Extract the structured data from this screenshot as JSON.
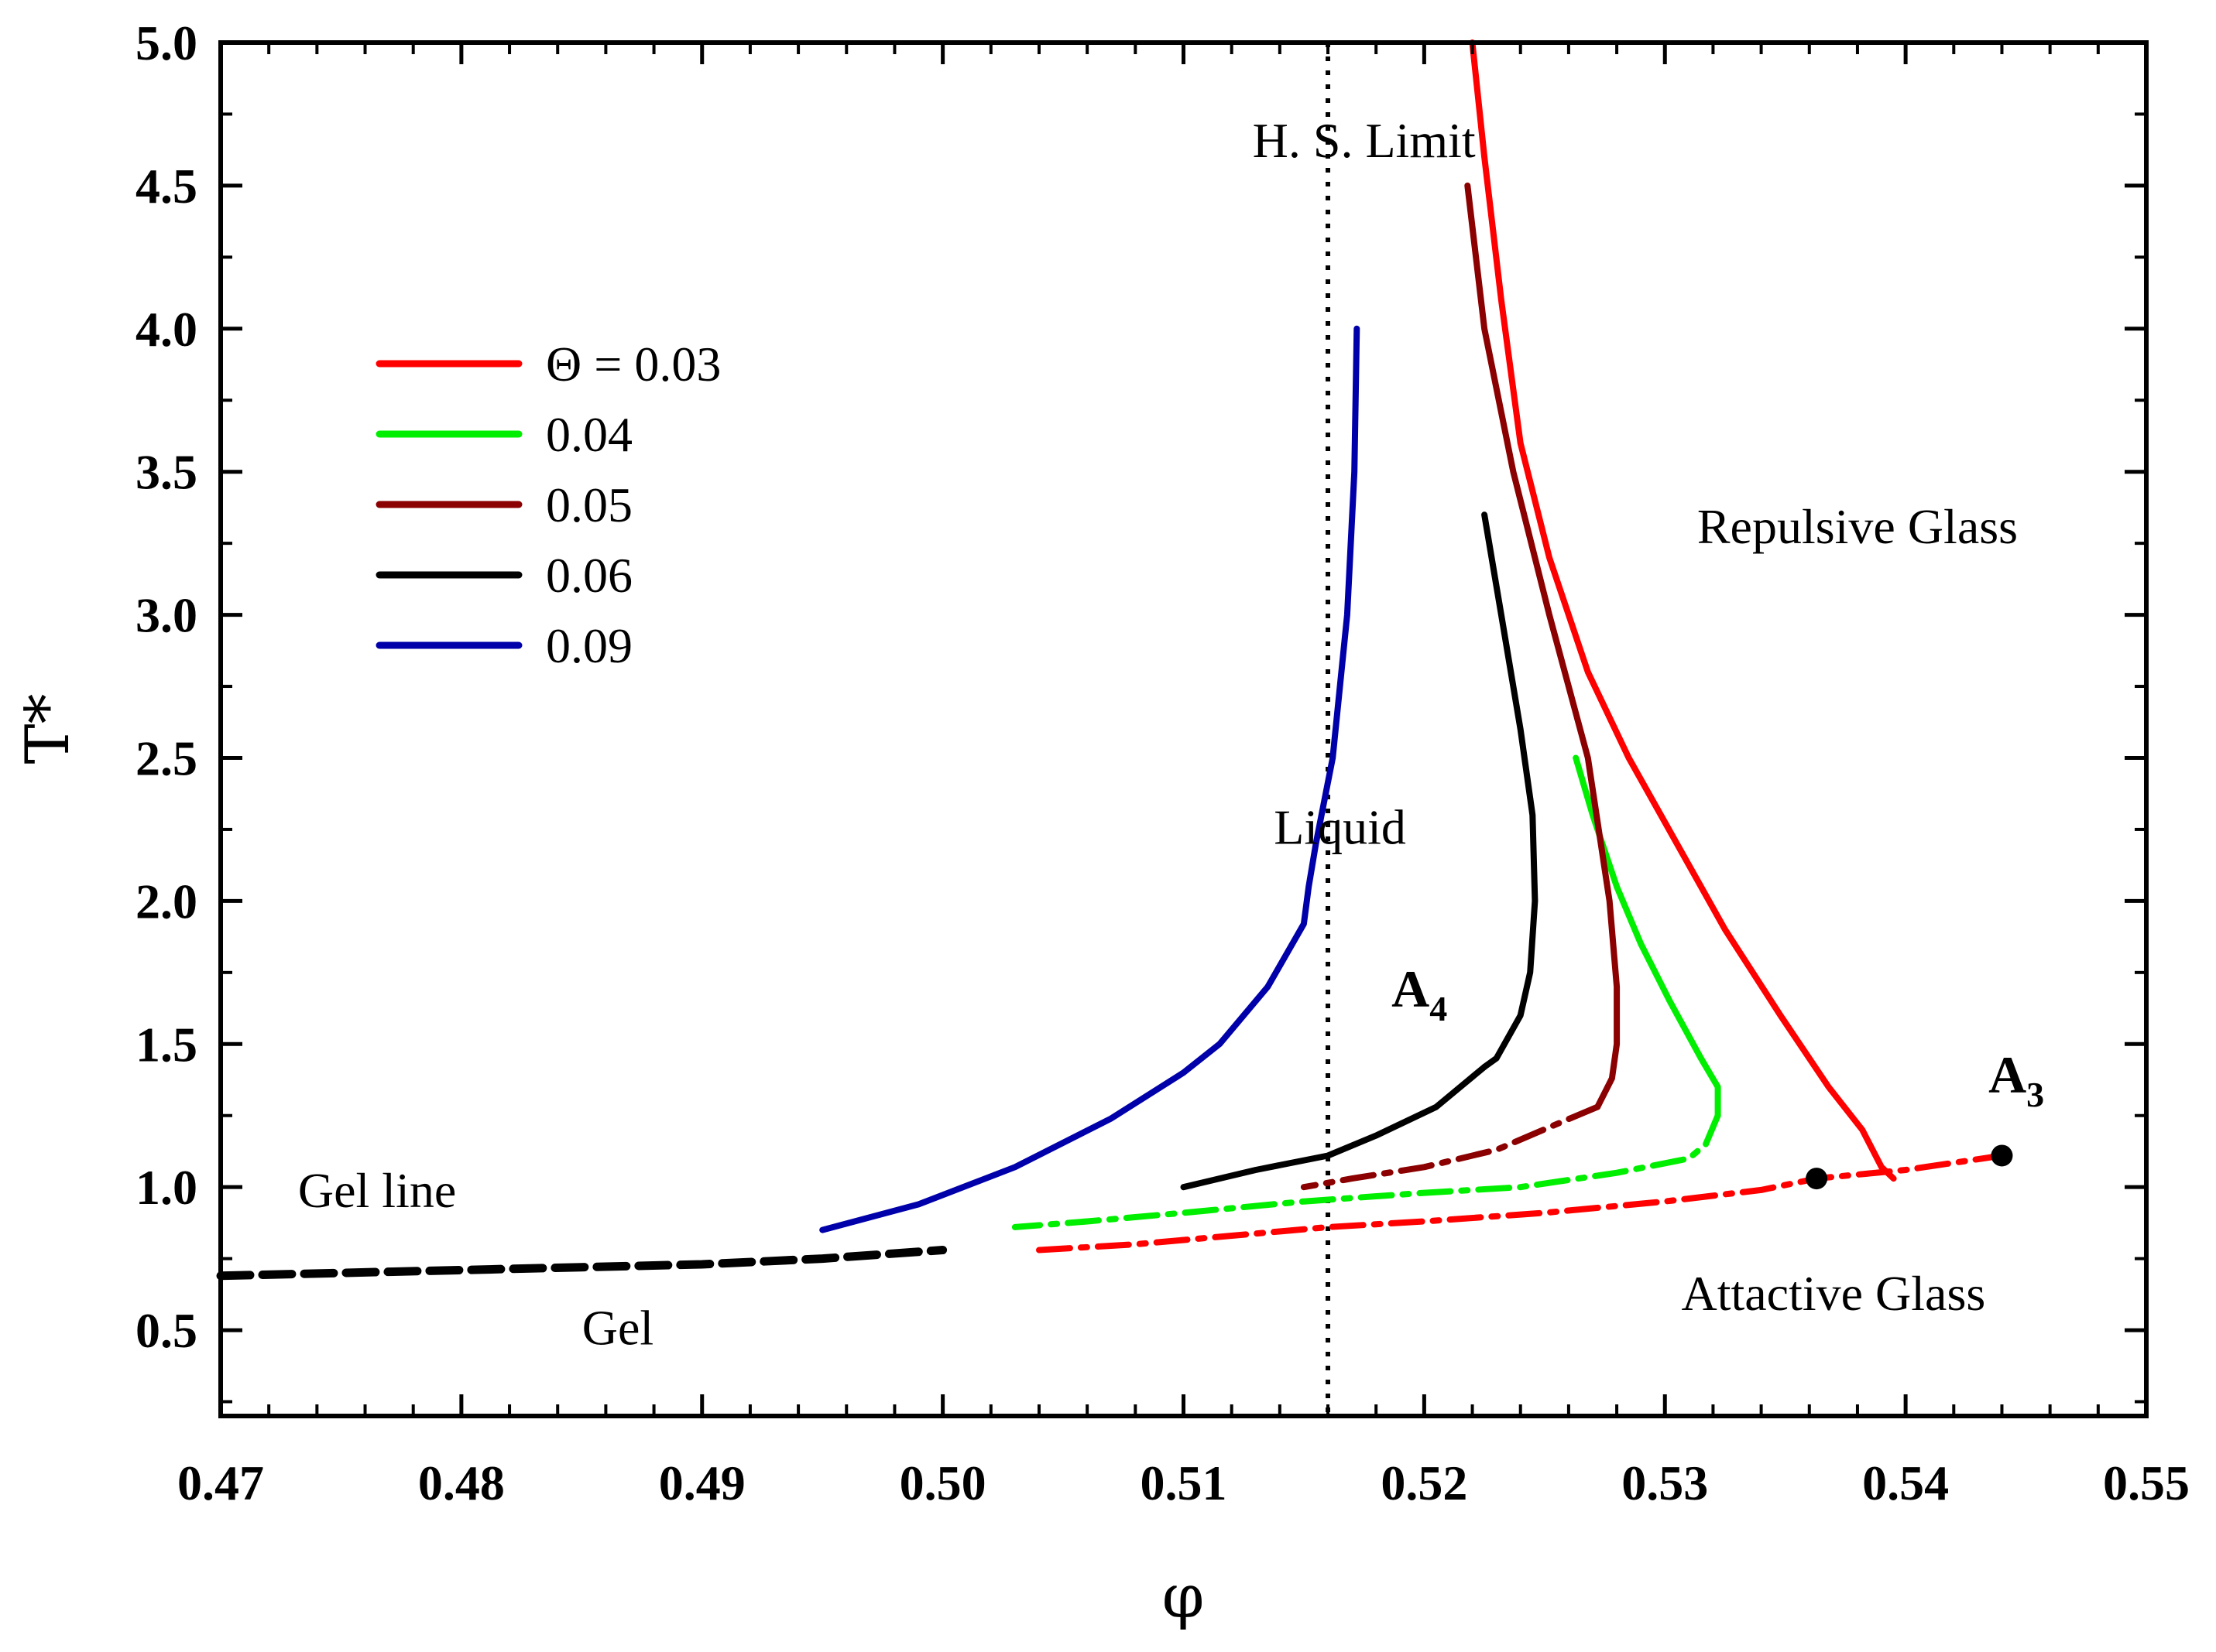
{
  "chart_data": {
    "type": "line",
    "xlabel": "φ",
    "ylabel": "T*",
    "xlim": [
      0.47,
      0.55
    ],
    "ylim": [
      0.2,
      5.0
    ],
    "x_ticks": [
      "0.47",
      "0.48",
      "0.49",
      "0.50",
      "0.51",
      "0.52",
      "0.53",
      "0.54",
      "0.55"
    ],
    "y_ticks": [
      "0.5",
      "1.0",
      "1.5",
      "2.0",
      "2.5",
      "3.0",
      "3.5",
      "4.0",
      "4.5",
      "5.0"
    ],
    "legend": {
      "placement": "upper-left",
      "entries": [
        {
          "label": "Θ = 0.03",
          "color": "#ff0000"
        },
        {
          "label": "0.04",
          "color": "#00ee00"
        },
        {
          "label": "0.05",
          "color": "#8b0000"
        },
        {
          "label": "0.06",
          "color": "#000000"
        },
        {
          "label": "0.09",
          "color": "#0000aa"
        }
      ]
    },
    "series": [
      {
        "name": "Θ = 0.03 repulsive",
        "color": "#ff0000",
        "style": "solid",
        "points": [
          [
            0.522,
            5.0
          ],
          [
            0.5225,
            4.6
          ],
          [
            0.5232,
            4.1
          ],
          [
            0.524,
            3.6
          ],
          [
            0.5252,
            3.2
          ],
          [
            0.5268,
            2.8
          ],
          [
            0.5285,
            2.5
          ],
          [
            0.5305,
            2.2
          ],
          [
            0.5325,
            1.9
          ],
          [
            0.5348,
            1.6
          ],
          [
            0.5368,
            1.35
          ],
          [
            0.5382,
            1.2
          ],
          [
            0.539,
            1.07
          ],
          [
            0.5395,
            1.03
          ]
        ]
      },
      {
        "name": "Θ = 0.03 attractive",
        "color": "#ff0000",
        "style": "dashdot",
        "points": [
          [
            0.504,
            0.78
          ],
          [
            0.508,
            0.8
          ],
          [
            0.512,
            0.83
          ],
          [
            0.516,
            0.86
          ],
          [
            0.52,
            0.88
          ],
          [
            0.525,
            0.91
          ],
          [
            0.53,
            0.95
          ],
          [
            0.534,
            0.99
          ],
          [
            0.5363,
            1.03
          ],
          [
            0.54,
            1.06
          ],
          [
            0.544,
            1.11
          ]
        ]
      },
      {
        "name": "0.04 repulsive",
        "color": "#00ee00",
        "style": "solid",
        "points": [
          [
            0.5263,
            2.5
          ],
          [
            0.527,
            2.3
          ],
          [
            0.528,
            2.05
          ],
          [
            0.529,
            1.85
          ],
          [
            0.5302,
            1.65
          ],
          [
            0.5315,
            1.45
          ],
          [
            0.5322,
            1.35
          ],
          [
            0.5322,
            1.25
          ]
        ]
      },
      {
        "name": "0.04 attractive",
        "color": "#00ee00",
        "style": "dashdot",
        "points": [
          [
            0.5322,
            1.25
          ],
          [
            0.5317,
            1.15
          ],
          [
            0.531,
            1.1
          ],
          [
            0.528,
            1.05
          ],
          [
            0.524,
            1.0
          ],
          [
            0.52,
            0.98
          ],
          [
            0.515,
            0.95
          ],
          [
            0.51,
            0.91
          ],
          [
            0.506,
            0.88
          ],
          [
            0.503,
            0.86
          ]
        ]
      },
      {
        "name": "0.05 repulsive",
        "color": "#8b0000",
        "style": "solid",
        "points": [
          [
            0.5218,
            4.5
          ],
          [
            0.5225,
            4.0
          ],
          [
            0.5237,
            3.5
          ],
          [
            0.5252,
            3.0
          ],
          [
            0.5268,
            2.5
          ],
          [
            0.5277,
            2.0
          ],
          [
            0.528,
            1.7
          ],
          [
            0.528,
            1.5
          ],
          [
            0.5278,
            1.38
          ],
          [
            0.5272,
            1.28
          ]
        ]
      },
      {
        "name": "0.05 attractive",
        "color": "#8b0000",
        "style": "dashdot",
        "points": [
          [
            0.5272,
            1.28
          ],
          [
            0.5255,
            1.22
          ],
          [
            0.523,
            1.13
          ],
          [
            0.52,
            1.07
          ],
          [
            0.517,
            1.03
          ],
          [
            0.515,
            1.0
          ]
        ]
      },
      {
        "name": "0.06 repulsive",
        "color": "#000000",
        "style": "solid",
        "points": [
          [
            0.5225,
            3.35
          ],
          [
            0.5232,
            3.0
          ],
          [
            0.524,
            2.6
          ],
          [
            0.5245,
            2.3
          ],
          [
            0.5246,
            2.0
          ],
          [
            0.5244,
            1.75
          ],
          [
            0.524,
            1.6
          ],
          [
            0.523,
            1.45
          ],
          [
            0.5225,
            1.42
          ]
        ]
      },
      {
        "name": "0.06 attractive",
        "color": "#000000",
        "style": "solid",
        "points": [
          [
            0.5225,
            1.42
          ],
          [
            0.5205,
            1.28
          ],
          [
            0.518,
            1.18
          ],
          [
            0.516,
            1.11
          ],
          [
            0.513,
            1.06
          ],
          [
            0.51,
            1.0
          ]
        ]
      },
      {
        "name": "0.09",
        "color": "#0000aa",
        "style": "solid",
        "points": [
          [
            0.5172,
            4.0
          ],
          [
            0.5171,
            3.5
          ],
          [
            0.5168,
            3.0
          ],
          [
            0.5162,
            2.5
          ],
          [
            0.5155,
            2.2
          ],
          [
            0.5152,
            2.05
          ],
          [
            0.515,
            1.92
          ],
          [
            0.5135,
            1.7
          ],
          [
            0.5115,
            1.5
          ],
          [
            0.51,
            1.4
          ],
          [
            0.507,
            1.24
          ],
          [
            0.503,
            1.07
          ],
          [
            0.499,
            0.94
          ],
          [
            0.495,
            0.85
          ]
        ]
      },
      {
        "name": "Gel line",
        "color": "#000000",
        "style": "dashed",
        "points": [
          [
            0.47,
            0.69
          ],
          [
            0.475,
            0.7
          ],
          [
            0.48,
            0.71
          ],
          [
            0.485,
            0.72
          ],
          [
            0.49,
            0.73
          ],
          [
            0.495,
            0.75
          ],
          [
            0.5,
            0.78
          ]
        ]
      }
    ],
    "guide_line": {
      "x": 0.516,
      "style": "dotted",
      "color": "#000000"
    },
    "markers": [
      {
        "x": 0.5363,
        "y": 1.03,
        "color": "#000000"
      },
      {
        "x": 0.544,
        "y": 1.11,
        "color": "#000000"
      }
    ],
    "annotations": [
      {
        "text": "H. S. Limit",
        "x": 0.5175,
        "y": 4.6
      },
      {
        "text": "Repulsive Glass",
        "x": 0.538,
        "y": 3.25
      },
      {
        "text": "Liquid",
        "x": 0.5165,
        "y": 2.2
      },
      {
        "text": "Gel line",
        "x": 0.4765,
        "y": 0.93
      },
      {
        "text": "Gel",
        "x": 0.4865,
        "y": 0.45
      },
      {
        "text": "Attactive Glass",
        "x": 0.537,
        "y": 0.57
      }
    ],
    "subscript_labels": [
      {
        "base": "A",
        "sub": "4",
        "x": 0.5198,
        "y": 1.63
      },
      {
        "base": "A",
        "sub": "3",
        "x": 0.5446,
        "y": 1.33
      }
    ]
  }
}
